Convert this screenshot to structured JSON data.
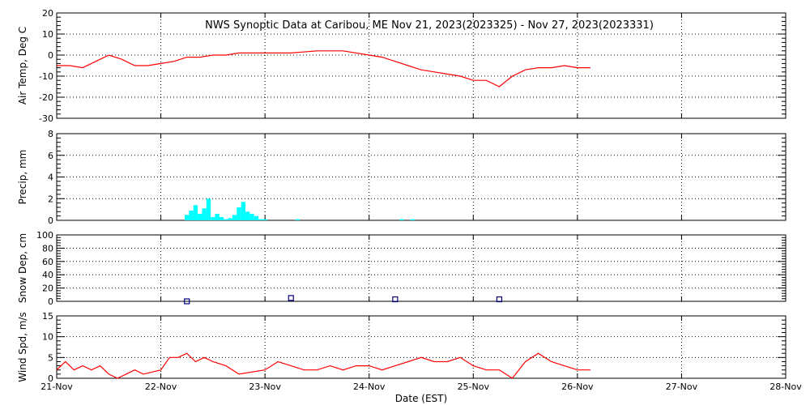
{
  "title": "NWS Synoptic Data at Caribou, ME   Nov 21, 2023(2023325) - Nov 27, 2023(2023331)",
  "x_axis": {
    "label": "Date (EST)",
    "ticks": [
      "21-Nov",
      "22-Nov",
      "23-Nov",
      "24-Nov",
      "25-Nov",
      "26-Nov",
      "27-Nov",
      "28-Nov"
    ],
    "range_days": [
      0,
      7
    ]
  },
  "colors": {
    "temp": "#ff0000",
    "precip": "#00ffff",
    "snow": "#000080",
    "wind": "#ff0000"
  },
  "chart_data": [
    {
      "type": "line",
      "ylabel": "Air Temp, Deg C",
      "ylim": [
        -30,
        20
      ],
      "yticks": [
        -30,
        -20,
        -10,
        0,
        10,
        20
      ],
      "grid": true,
      "series": [
        {
          "x": [
            "2023-11-21 00:00",
            "2023-11-21 03:00",
            "2023-11-21 06:00",
            "2023-11-21 09:00",
            "2023-11-21 12:00",
            "2023-11-21 15:00",
            "2023-11-21 18:00",
            "2023-11-21 21:00",
            "2023-11-22 00:00",
            "2023-11-22 03:00",
            "2023-11-22 06:00",
            "2023-11-22 09:00",
            "2023-11-22 12:00",
            "2023-11-22 15:00",
            "2023-11-22 18:00",
            "2023-11-22 21:00",
            "2023-11-23 00:00",
            "2023-11-23 06:00",
            "2023-11-23 12:00",
            "2023-11-23 18:00",
            "2023-11-24 00:00",
            "2023-11-24 03:00",
            "2023-11-24 06:00",
            "2023-11-24 09:00",
            "2023-11-24 12:00",
            "2023-11-24 15:00",
            "2023-11-24 18:00",
            "2023-11-24 21:00",
            "2023-11-25 00:00",
            "2023-11-25 03:00",
            "2023-11-25 06:00",
            "2023-11-25 09:00",
            "2023-11-25 12:00",
            "2023-11-25 15:00",
            "2023-11-25 18:00",
            "2023-11-25 21:00",
            "2023-11-26 00:00",
            "2023-11-26 03:00"
          ],
          "y": [
            -5,
            -5,
            -6,
            -3,
            0,
            -2,
            -5,
            -5,
            -4,
            -3,
            -1,
            -1,
            0,
            0,
            1,
            1,
            1,
            1,
            2,
            2,
            0,
            -1,
            -3,
            -5,
            -7,
            -8,
            -9,
            -10,
            -12,
            -12,
            -15,
            -10,
            -7,
            -6,
            -6,
            -5,
            -6,
            -6
          ]
        }
      ]
    },
    {
      "type": "bar",
      "ylabel": "Precip, mm",
      "ylim": [
        0,
        8
      ],
      "yticks": [
        0,
        2,
        4,
        6,
        8
      ],
      "grid": true,
      "series": [
        {
          "x": [
            "2023-11-22 06:00",
            "2023-11-22 07:00",
            "2023-11-22 08:00",
            "2023-11-22 09:00",
            "2023-11-22 10:00",
            "2023-11-22 11:00",
            "2023-11-22 12:00",
            "2023-11-22 13:00",
            "2023-11-22 14:00",
            "2023-11-22 15:00",
            "2023-11-22 16:00",
            "2023-11-22 17:00",
            "2023-11-22 18:00",
            "2023-11-22 19:00",
            "2023-11-22 20:00",
            "2023-11-22 21:00",
            "2023-11-22 22:00",
            "2023-11-22 23:00",
            "2023-11-23 00:00",
            "2023-11-23 07:30",
            "2023-11-24 07:30",
            "2023-11-24 10:00"
          ],
          "y": [
            0.5,
            0.9,
            1.4,
            0.6,
            1.1,
            2.0,
            0.3,
            0.6,
            0.3,
            0.1,
            0.2,
            0.5,
            1.2,
            1.7,
            0.8,
            0.6,
            0.4,
            0.1,
            0.1,
            0.1,
            0.1,
            0.1
          ]
        }
      ]
    },
    {
      "type": "scatter",
      "ylabel": "Snow Dep, cm",
      "ylim": [
        0,
        100
      ],
      "yticks": [
        0,
        20,
        40,
        60,
        80,
        100
      ],
      "grid": true,
      "series": [
        {
          "x": [
            "2023-11-22 06:00",
            "2023-11-23 06:00",
            "2023-11-24 06:00",
            "2023-11-25 06:00"
          ],
          "y": [
            0,
            5,
            3,
            3
          ]
        }
      ]
    },
    {
      "type": "line",
      "ylabel": "Wind Spd, m/s",
      "ylim": [
        0,
        15
      ],
      "yticks": [
        0,
        5,
        10,
        15
      ],
      "grid": true,
      "series": [
        {
          "x": [
            "2023-11-21 00:00",
            "2023-11-21 02:00",
            "2023-11-21 04:00",
            "2023-11-21 06:00",
            "2023-11-21 08:00",
            "2023-11-21 10:00",
            "2023-11-21 12:00",
            "2023-11-21 14:00",
            "2023-11-21 16:00",
            "2023-11-21 18:00",
            "2023-11-21 20:00",
            "2023-11-22 00:00",
            "2023-11-22 02:00",
            "2023-11-22 04:00",
            "2023-11-22 06:00",
            "2023-11-22 08:00",
            "2023-11-22 10:00",
            "2023-11-22 12:00",
            "2023-11-22 15:00",
            "2023-11-22 18:00",
            "2023-11-23 00:00",
            "2023-11-23 03:00",
            "2023-11-23 06:00",
            "2023-11-23 09:00",
            "2023-11-23 12:00",
            "2023-11-23 15:00",
            "2023-11-23 18:00",
            "2023-11-23 21:00",
            "2023-11-24 00:00",
            "2023-11-24 03:00",
            "2023-11-24 06:00",
            "2023-11-24 09:00",
            "2023-11-24 12:00",
            "2023-11-24 15:00",
            "2023-11-24 18:00",
            "2023-11-24 21:00",
            "2023-11-25 00:00",
            "2023-11-25 03:00",
            "2023-11-25 06:00",
            "2023-11-25 09:00",
            "2023-11-25 12:00",
            "2023-11-25 15:00",
            "2023-11-25 18:00",
            "2023-11-25 21:00",
            "2023-11-26 00:00",
            "2023-11-26 03:00"
          ],
          "y": [
            2,
            4,
            2,
            3,
            2,
            3,
            1,
            0,
            1,
            2,
            1,
            2,
            5,
            5,
            6,
            4,
            5,
            4,
            3,
            1,
            2,
            4,
            3,
            2,
            2,
            3,
            2,
            3,
            3,
            2,
            3,
            4,
            5,
            4,
            4,
            5,
            3,
            2,
            2,
            0,
            4,
            6,
            4,
            3,
            2,
            2
          ]
        }
      ]
    }
  ]
}
